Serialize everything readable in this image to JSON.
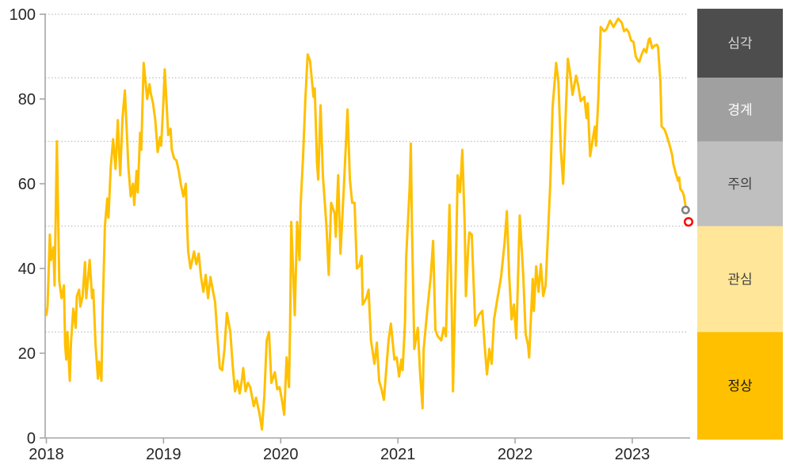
{
  "page": {
    "background": "#FFFFFF"
  },
  "chart_data": {
    "type": "line",
    "title": "",
    "xlabel": "",
    "ylabel": "",
    "x_axis": {
      "tick_values": [
        2018,
        2019,
        2020,
        2021,
        2022,
        2023
      ],
      "tick_labels": [
        "2018",
        "2019",
        "2020",
        "2021",
        "2022",
        "2023"
      ],
      "range": [
        2018.0,
        2023.6
      ]
    },
    "y_axis": {
      "tick_values": [
        0,
        20,
        40,
        60,
        80,
        100
      ],
      "tick_labels": [
        "0",
        "20",
        "40",
        "60",
        "80",
        "100"
      ],
      "range": [
        0,
        100
      ]
    },
    "gridlines_y": [
      25,
      50,
      70,
      85,
      100
    ],
    "grid_style": "dotted",
    "legend_position": "right-bands",
    "colors": {
      "line": "#FFC000",
      "grid": "#BFBFBF",
      "axis": "#A6A6A6",
      "tick_text": "#262626",
      "marker_previous": "#808080",
      "marker_latest": "#FF0000"
    },
    "bands": [
      {
        "label": "심각",
        "from": 85,
        "to": 101.3,
        "color": "#4D4D4D",
        "text_color": "#D9D9D9"
      },
      {
        "label": "경계",
        "from": 70,
        "to": 85,
        "color": "#A0A0A0",
        "text_color": "#FFFFFF"
      },
      {
        "label": "주의",
        "from": 50,
        "to": 70,
        "color": "#BFBFBF",
        "text_color": "#404040"
      },
      {
        "label": "관심",
        "from": 25,
        "to": 50,
        "color": "#FFE699",
        "text_color": "#404040"
      },
      {
        "label": "정상",
        "from": -0.4,
        "to": 25,
        "color": "#FFC000",
        "text_color": "#1A1A1A"
      }
    ],
    "markers": [
      {
        "name": "previous",
        "x": 2023.455,
        "y": 53.8,
        "stroke": "#808080",
        "fill": "#FFFFFF"
      },
      {
        "name": "latest",
        "x": 2023.48,
        "y": 51.0,
        "stroke": "#FF0000",
        "fill": "#FFFFFF"
      }
    ],
    "series": [
      {
        "name": "index",
        "color": "#FFC000",
        "points": [
          [
            2018.0,
            29
          ],
          [
            2018.01,
            31
          ],
          [
            2018.03,
            48
          ],
          [
            2018.04,
            42
          ],
          [
            2018.06,
            45
          ],
          [
            2018.07,
            36
          ],
          [
            2018.09,
            70
          ],
          [
            2018.11,
            37
          ],
          [
            2018.13,
            33
          ],
          [
            2018.15,
            36
          ],
          [
            2018.16,
            22
          ],
          [
            2018.17,
            18.5
          ],
          [
            2018.18,
            25
          ],
          [
            2018.2,
            13.5
          ],
          [
            2018.21,
            22.5
          ],
          [
            2018.23,
            30.5
          ],
          [
            2018.25,
            26
          ],
          [
            2018.26,
            33.5
          ],
          [
            2018.28,
            35
          ],
          [
            2018.29,
            31
          ],
          [
            2018.31,
            33.5
          ],
          [
            2018.33,
            41.5
          ],
          [
            2018.34,
            33
          ],
          [
            2018.37,
            42
          ],
          [
            2018.39,
            33
          ],
          [
            2018.4,
            35
          ],
          [
            2018.42,
            22
          ],
          [
            2018.44,
            14
          ],
          [
            2018.45,
            18
          ],
          [
            2018.47,
            13.5
          ],
          [
            2018.48,
            29
          ],
          [
            2018.5,
            50
          ],
          [
            2018.52,
            56.5
          ],
          [
            2018.53,
            52
          ],
          [
            2018.55,
            64
          ],
          [
            2018.57,
            70.5
          ],
          [
            2018.59,
            63.5
          ],
          [
            2018.61,
            75
          ],
          [
            2018.62,
            68
          ],
          [
            2018.63,
            62
          ],
          [
            2018.65,
            75.5
          ],
          [
            2018.67,
            82
          ],
          [
            2018.69,
            70
          ],
          [
            2018.7,
            64
          ],
          [
            2018.72,
            57
          ],
          [
            2018.74,
            60
          ],
          [
            2018.75,
            55
          ],
          [
            2018.77,
            63
          ],
          [
            2018.78,
            58
          ],
          [
            2018.8,
            72
          ],
          [
            2018.81,
            68
          ],
          [
            2018.83,
            88.5
          ],
          [
            2018.85,
            83
          ],
          [
            2018.86,
            80
          ],
          [
            2018.88,
            83.5
          ],
          [
            2018.89,
            81.5
          ],
          [
            2018.91,
            79
          ],
          [
            2018.93,
            75
          ],
          [
            2018.95,
            67.5
          ],
          [
            2018.97,
            71
          ],
          [
            2018.98,
            69
          ],
          [
            2019.0,
            80
          ],
          [
            2019.01,
            87
          ],
          [
            2019.03,
            77
          ],
          [
            2019.04,
            71.5
          ],
          [
            2019.06,
            73
          ],
          [
            2019.07,
            68
          ],
          [
            2019.09,
            66
          ],
          [
            2019.11,
            65.5
          ],
          [
            2019.13,
            63
          ],
          [
            2019.15,
            59.5
          ],
          [
            2019.17,
            57
          ],
          [
            2019.19,
            60
          ],
          [
            2019.2,
            51
          ],
          [
            2019.21,
            44
          ],
          [
            2019.23,
            40
          ],
          [
            2019.26,
            44
          ],
          [
            2019.28,
            41
          ],
          [
            2019.3,
            43.5
          ],
          [
            2019.32,
            38
          ],
          [
            2019.34,
            34.5
          ],
          [
            2019.36,
            38.5
          ],
          [
            2019.38,
            33
          ],
          [
            2019.4,
            38
          ],
          [
            2019.42,
            35
          ],
          [
            2019.44,
            32
          ],
          [
            2019.46,
            24
          ],
          [
            2019.48,
            16.5
          ],
          [
            2019.5,
            16
          ],
          [
            2019.52,
            21
          ],
          [
            2019.54,
            29.5
          ],
          [
            2019.57,
            25
          ],
          [
            2019.59,
            17
          ],
          [
            2019.61,
            11
          ],
          [
            2019.63,
            13.5
          ],
          [
            2019.65,
            10.5
          ],
          [
            2019.67,
            14
          ],
          [
            2019.68,
            16.5
          ],
          [
            2019.7,
            11
          ],
          [
            2019.72,
            13
          ],
          [
            2019.74,
            12
          ],
          [
            2019.77,
            7.5
          ],
          [
            2019.79,
            9.5
          ],
          [
            2019.82,
            5.5
          ],
          [
            2019.84,
            2
          ],
          [
            2019.86,
            10
          ],
          [
            2019.88,
            23
          ],
          [
            2019.9,
            25
          ],
          [
            2019.92,
            13
          ],
          [
            2019.95,
            15.5
          ],
          [
            2019.97,
            11.5
          ],
          [
            2019.99,
            12
          ],
          [
            2020.01,
            9
          ],
          [
            2020.03,
            5.5
          ],
          [
            2020.05,
            19
          ],
          [
            2020.07,
            12
          ],
          [
            2020.08,
            26
          ],
          [
            2020.09,
            51
          ],
          [
            2020.12,
            29
          ],
          [
            2020.14,
            51
          ],
          [
            2020.16,
            42
          ],
          [
            2020.17,
            55
          ],
          [
            2020.19,
            66
          ],
          [
            2020.21,
            80
          ],
          [
            2020.23,
            90.5
          ],
          [
            2020.25,
            89
          ],
          [
            2020.26,
            86
          ],
          [
            2020.28,
            80.5
          ],
          [
            2020.29,
            82.5
          ],
          [
            2020.31,
            65
          ],
          [
            2020.32,
            61
          ],
          [
            2020.34,
            78.5
          ],
          [
            2020.36,
            62
          ],
          [
            2020.39,
            50
          ],
          [
            2020.41,
            38.5
          ],
          [
            2020.43,
            55.5
          ],
          [
            2020.46,
            53
          ],
          [
            2020.47,
            47.5
          ],
          [
            2020.49,
            62
          ],
          [
            2020.51,
            43.5
          ],
          [
            2020.54,
            60
          ],
          [
            2020.57,
            77.5
          ],
          [
            2020.59,
            61
          ],
          [
            2020.61,
            55.5
          ],
          [
            2020.63,
            55.5
          ],
          [
            2020.65,
            40
          ],
          [
            2020.67,
            40.5
          ],
          [
            2020.69,
            43
          ],
          [
            2020.7,
            31.5
          ],
          [
            2020.73,
            33
          ],
          [
            2020.75,
            35
          ],
          [
            2020.77,
            23
          ],
          [
            2020.8,
            17.5
          ],
          [
            2020.82,
            22.5
          ],
          [
            2020.84,
            13.5
          ],
          [
            2020.86,
            11.5
          ],
          [
            2020.88,
            9
          ],
          [
            2020.92,
            23
          ],
          [
            2020.94,
            27
          ],
          [
            2020.97,
            18.5
          ],
          [
            2020.99,
            19
          ],
          [
            2021.01,
            14.5
          ],
          [
            2021.03,
            18.5
          ],
          [
            2021.04,
            16
          ],
          [
            2021.06,
            27
          ],
          [
            2021.07,
            42.5
          ],
          [
            2021.1,
            59
          ],
          [
            2021.11,
            69.5
          ],
          [
            2021.12,
            50
          ],
          [
            2021.14,
            21
          ],
          [
            2021.17,
            26
          ],
          [
            2021.19,
            15
          ],
          [
            2021.21,
            7
          ],
          [
            2021.22,
            21
          ],
          [
            2021.25,
            30
          ],
          [
            2021.28,
            38
          ],
          [
            2021.3,
            46.5
          ],
          [
            2021.32,
            25.5
          ],
          [
            2021.34,
            24
          ],
          [
            2021.37,
            23
          ],
          [
            2021.39,
            26
          ],
          [
            2021.41,
            24
          ],
          [
            2021.44,
            55
          ],
          [
            2021.46,
            30
          ],
          [
            2021.47,
            11
          ],
          [
            2021.49,
            35
          ],
          [
            2021.51,
            62
          ],
          [
            2021.53,
            58
          ],
          [
            2021.55,
            68
          ],
          [
            2021.57,
            50
          ],
          [
            2021.58,
            33.5
          ],
          [
            2021.6,
            45
          ],
          [
            2021.61,
            48.5
          ],
          [
            2021.63,
            48
          ],
          [
            2021.66,
            26.5
          ],
          [
            2021.69,
            29
          ],
          [
            2021.72,
            30
          ],
          [
            2021.74,
            22
          ],
          [
            2021.76,
            15
          ],
          [
            2021.78,
            21
          ],
          [
            2021.8,
            17.5
          ],
          [
            2021.82,
            28
          ],
          [
            2021.85,
            33
          ],
          [
            2021.88,
            38
          ],
          [
            2021.91,
            46
          ],
          [
            2021.93,
            53.5
          ],
          [
            2021.95,
            38
          ],
          [
            2021.97,
            28
          ],
          [
            2021.99,
            31.5
          ],
          [
            2022.01,
            23.5
          ],
          [
            2022.04,
            52.5
          ],
          [
            2022.07,
            38
          ],
          [
            2022.09,
            24.5
          ],
          [
            2022.11,
            22
          ],
          [
            2022.12,
            19
          ],
          [
            2022.15,
            37.5
          ],
          [
            2022.16,
            30
          ],
          [
            2022.18,
            40.5
          ],
          [
            2022.2,
            34.5
          ],
          [
            2022.22,
            41
          ],
          [
            2022.24,
            33.5
          ],
          [
            2022.26,
            36
          ],
          [
            2022.27,
            41.5
          ],
          [
            2022.3,
            60
          ],
          [
            2022.32,
            78
          ],
          [
            2022.35,
            88.5
          ],
          [
            2022.37,
            84
          ],
          [
            2022.39,
            68
          ],
          [
            2022.41,
            60
          ],
          [
            2022.43,
            75
          ],
          [
            2022.45,
            89.5
          ],
          [
            2022.47,
            86
          ],
          [
            2022.49,
            81
          ],
          [
            2022.52,
            85.5
          ],
          [
            2022.54,
            83
          ],
          [
            2022.56,
            79.5
          ],
          [
            2022.59,
            80.5
          ],
          [
            2022.61,
            75.5
          ],
          [
            2022.62,
            79
          ],
          [
            2022.64,
            66.5
          ],
          [
            2022.66,
            70
          ],
          [
            2022.68,
            73.5
          ],
          [
            2022.69,
            69
          ],
          [
            2022.71,
            80
          ],
          [
            2022.73,
            97
          ],
          [
            2022.76,
            96
          ],
          [
            2022.78,
            96.5
          ],
          [
            2022.81,
            98.5
          ],
          [
            2022.84,
            97
          ],
          [
            2022.86,
            98
          ],
          [
            2022.88,
            99
          ],
          [
            2022.91,
            98
          ],
          [
            2022.93,
            96
          ],
          [
            2022.95,
            96.5
          ],
          [
            2022.97,
            95.7
          ],
          [
            2022.99,
            93.8
          ],
          [
            2023.01,
            93.5
          ],
          [
            2023.03,
            90
          ],
          [
            2023.05,
            89
          ],
          [
            2023.06,
            88.8
          ],
          [
            2023.08,
            90.5
          ],
          [
            2023.1,
            91.8
          ],
          [
            2023.12,
            91
          ],
          [
            2023.14,
            94
          ],
          [
            2023.15,
            94.3
          ],
          [
            2023.17,
            92
          ],
          [
            2023.19,
            92.6
          ],
          [
            2023.21,
            92.8
          ],
          [
            2023.22,
            92.3
          ],
          [
            2023.24,
            84
          ],
          [
            2023.25,
            73.5
          ],
          [
            2023.27,
            73
          ],
          [
            2023.28,
            72.5
          ],
          [
            2023.3,
            70.8
          ],
          [
            2023.32,
            69
          ],
          [
            2023.34,
            66.8
          ],
          [
            2023.35,
            64.7
          ],
          [
            2023.37,
            62.6
          ],
          [
            2023.39,
            60.7
          ],
          [
            2023.4,
            61.5
          ],
          [
            2023.41,
            58.8
          ],
          [
            2023.43,
            58
          ],
          [
            2023.44,
            57.2
          ],
          [
            2023.45,
            55.5
          ],
          [
            2023.46,
            54
          ]
        ]
      }
    ]
  }
}
